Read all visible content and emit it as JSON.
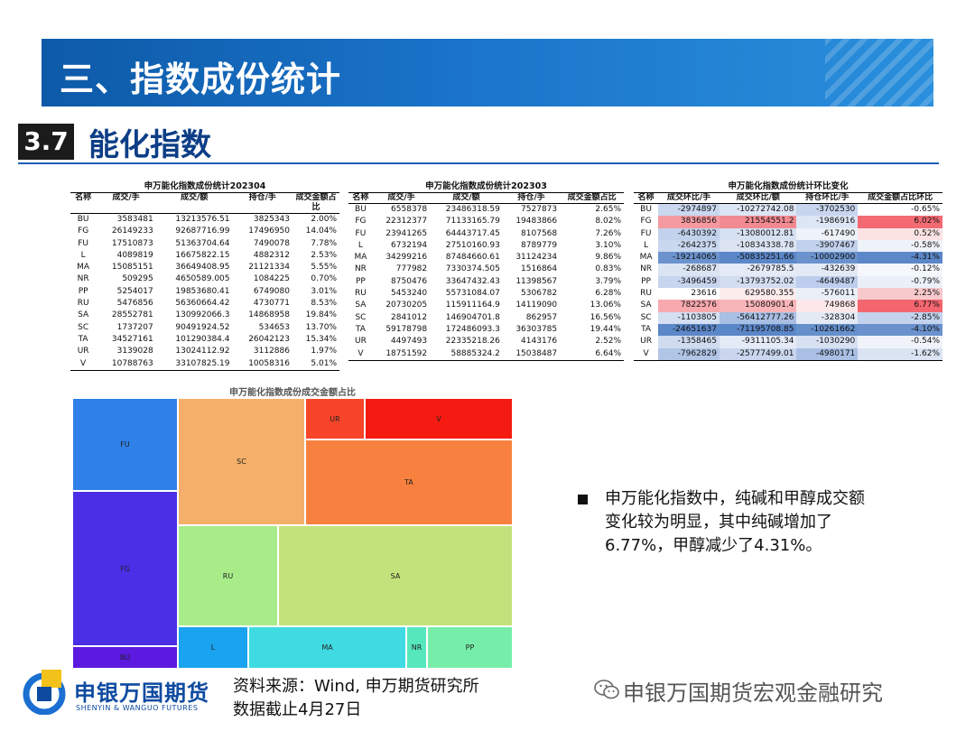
{
  "header": {
    "title": "三、指数成份统计"
  },
  "section": {
    "number": "3.7",
    "title": "能化指数"
  },
  "tables": [
    {
      "title": "申万能化指数成份统计202304",
      "columns": [
        "名称",
        "成交/手",
        "成交/额",
        "持仓/手",
        "成交金额占比"
      ],
      "rows": [
        [
          "BU",
          "3583481",
          "13213576.51",
          "3825343",
          "2.00%"
        ],
        [
          "FG",
          "26149233",
          "92687716.99",
          "17496950",
          "14.04%"
        ],
        [
          "FU",
          "17510873",
          "51363704.64",
          "7490078",
          "7.78%"
        ],
        [
          "L",
          "4089819",
          "16675822.15",
          "4882312",
          "2.53%"
        ],
        [
          "MA",
          "15085151",
          "36649408.95",
          "21121334",
          "5.55%"
        ],
        [
          "NR",
          "509295",
          "4650589.005",
          "1084225",
          "0.70%"
        ],
        [
          "PP",
          "5254017",
          "19853680.41",
          "6749080",
          "3.01%"
        ],
        [
          "RU",
          "5476856",
          "56360664.42",
          "4730771",
          "8.53%"
        ],
        [
          "SA",
          "28552781",
          "130992066.3",
          "14868958",
          "19.84%"
        ],
        [
          "SC",
          "1737207",
          "90491924.52",
          "534653",
          "13.70%"
        ],
        [
          "TA",
          "34527161",
          "101290384.4",
          "26042123",
          "15.34%"
        ],
        [
          "UR",
          "3139028",
          "13024112.92",
          "3112886",
          "1.97%"
        ],
        [
          "V",
          "10788763",
          "33107825.19",
          "10058316",
          "5.01%"
        ]
      ]
    },
    {
      "title": "申万能化指数成份统计202303",
      "columns": [
        "名称",
        "成交/手",
        "成交/额",
        "持仓/手",
        "成交金额占比"
      ],
      "rows": [
        [
          "BU",
          "6558378",
          "23486318.59",
          "7527873",
          "2.65%"
        ],
        [
          "FG",
          "22312377",
          "71133165.79",
          "19483866",
          "8.02%"
        ],
        [
          "FU",
          "23941265",
          "64443717.45",
          "8107568",
          "7.26%"
        ],
        [
          "L",
          "6732194",
          "27510160.93",
          "8789779",
          "3.10%"
        ],
        [
          "MA",
          "34299216",
          "87484660.61",
          "31124234",
          "9.86%"
        ],
        [
          "NR",
          "777982",
          "7330374.505",
          "1516864",
          "0.83%"
        ],
        [
          "PP",
          "8750476",
          "33647432.43",
          "11398567",
          "3.79%"
        ],
        [
          "RU",
          "5453240",
          "55731084.07",
          "5306782",
          "6.28%"
        ],
        [
          "SA",
          "20730205",
          "115911164.9",
          "14119090",
          "13.06%"
        ],
        [
          "SC",
          "2841012",
          "146904701.8",
          "862957",
          "16.56%"
        ],
        [
          "TA",
          "59178798",
          "172486093.3",
          "36303785",
          "19.44%"
        ],
        [
          "UR",
          "4497493",
          "22335218.26",
          "4143176",
          "2.52%"
        ],
        [
          "V",
          "18751592",
          "58885324.2",
          "15038487",
          "6.64%"
        ]
      ]
    },
    {
      "title": "申万能化指数成份统计环比变化",
      "columns": [
        "名称",
        "成交环比/手",
        "成交环比/额",
        "持仓环比/手",
        "成交金额占比环比"
      ],
      "rows": [
        [
          "BU",
          "-2974897",
          "-10272742.08",
          "-3702530",
          "-0.65%"
        ],
        [
          "FG",
          "3836856",
          "21554551.2",
          "-1986916",
          "6.02%"
        ],
        [
          "FU",
          "-6430392",
          "-13080012.81",
          "-617490",
          "0.52%"
        ],
        [
          "L",
          "-2642375",
          "-10834338.78",
          "-3907467",
          "-0.58%"
        ],
        [
          "MA",
          "-19214065",
          "-50835251.66",
          "-10002900",
          "-4.31%"
        ],
        [
          "NR",
          "-268687",
          "-2679785.5",
          "-432639",
          "-0.12%"
        ],
        [
          "PP",
          "-3496459",
          "-13793752.02",
          "-4649487",
          "-0.79%"
        ],
        [
          "RU",
          "23616",
          "629580.355",
          "-576011",
          "2.25%"
        ],
        [
          "SA",
          "7822576",
          "15080901.4",
          "749868",
          "6.77%"
        ],
        [
          "SC",
          "-1103805",
          "-56412777.26",
          "-328304",
          "-2.85%"
        ],
        [
          "TA",
          "-24651637",
          "-71195708.85",
          "-10261662",
          "-4.10%"
        ],
        [
          "UR",
          "-1358465",
          "-9311105.34",
          "-1030290",
          "-0.54%"
        ],
        [
          "V",
          "-7962829",
          "-25777499.01",
          "-4980171",
          "-1.62%"
        ]
      ],
      "cell_colors": [
        [
          null,
          "#c9d7ef",
          "#dce5f4",
          "#c7d5ee",
          "#ffffff"
        ],
        [
          null,
          "#f59aa0",
          "#f28a91",
          "#dde6f4",
          "#f36a73"
        ],
        [
          null,
          "#c2d2ec",
          "#d6e1f2",
          "#eef2f9",
          "#fbe3e4"
        ],
        [
          null,
          "#c9d7ef",
          "#dce4f3",
          "#c2d1ec",
          "#eef2f9"
        ],
        [
          null,
          "#6c93ce",
          "#5b86c7",
          "#6b92cd",
          "#5c87c8"
        ],
        [
          null,
          "#dbe4f3",
          "#e4eaf6",
          "#e3eaf5",
          "#f4f7fb"
        ],
        [
          null,
          "#c7d5ee",
          "#d3ddf1",
          "#bccded",
          "#ebf0f8"
        ],
        [
          null,
          "#ffffff",
          "#fcecec",
          "#eaeff8",
          "#f8c9cc"
        ],
        [
          null,
          "#f7a9ae",
          "#f8b5b9",
          "#fde8e9",
          "#f3666f"
        ],
        [
          null,
          "#d5dff2",
          "#a8bee3",
          "#e3eaf5",
          "#c4d3ed"
        ],
        [
          null,
          "#5c87c8",
          "#5b86c7",
          "#6690cc",
          "#6b92cd"
        ],
        [
          null,
          "#d0dbf0",
          "#e4ebf6",
          "#d7e1f2",
          "#f0f4fa"
        ],
        [
          null,
          "#b1c5e6",
          "#c9d6ee",
          "#a9bfe4",
          "#dbe4f3"
        ]
      ]
    }
  ],
  "treemap": {
    "title": "申万能化指数成份成交金额占比",
    "tiles": [
      {
        "label": "FU",
        "color": "#2f80e8"
      },
      {
        "label": "FG",
        "color": "#4a2fe6"
      },
      {
        "label": "BU",
        "color": "#5c1ae0"
      },
      {
        "label": "SC",
        "color": "#f4b06a"
      },
      {
        "label": "UR",
        "color": "#f64528"
      },
      {
        "label": "V",
        "color": "#f51b12"
      },
      {
        "label": "TA",
        "color": "#f8813f"
      },
      {
        "label": "RU",
        "color": "#a8ec8a"
      },
      {
        "label": "SA",
        "color": "#c4e27b"
      },
      {
        "label": "L",
        "color": "#1aa3ef"
      },
      {
        "label": "MA",
        "color": "#40dbe2"
      },
      {
        "label": "NR",
        "color": "#56e7bd"
      },
      {
        "label": "PP",
        "color": "#76eeaa"
      }
    ]
  },
  "bullet": {
    "lines": [
      "申万能化指数中，纯碱和甲醇成交额",
      "变化较为明显，其中纯碱增加了",
      "6.77%，甲醇减少了4.31%。"
    ]
  },
  "footer": {
    "logo_cn": "申银万国期货",
    "logo_en": "SHENYIN & WANGUO FUTURES",
    "source_line1": "资料来源：Wind, 申万期货研究所",
    "source_line2": "数据截止4月27日",
    "wechat": "申银万国期货宏观金融研究"
  }
}
